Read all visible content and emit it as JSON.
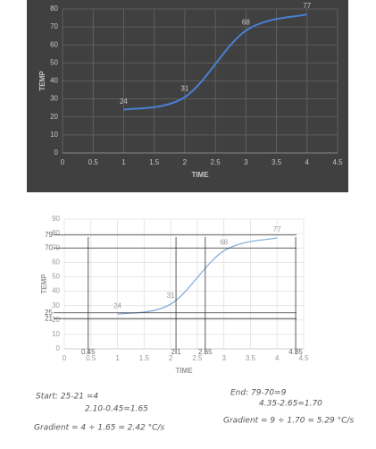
{
  "chart_data": [
    {
      "type": "line",
      "x_label": "TIME",
      "y_label": "TEMP",
      "x": [
        1,
        2,
        3,
        4
      ],
      "values": [
        24,
        31,
        68,
        77
      ],
      "color": "#4a7fd4",
      "background": "#404040",
      "xlim": [
        0,
        4.5
      ],
      "ylim": [
        0,
        80
      ],
      "xticks": [
        0,
        0.5,
        1,
        1.5,
        2,
        2.5,
        3,
        3.5,
        4,
        4.5
      ],
      "yticks": [
        0,
        10,
        20,
        30,
        40,
        50,
        60,
        70,
        80
      ],
      "grid": true
    },
    {
      "type": "line",
      "x_label": "TIME",
      "y_label": "TEMP",
      "x": [
        1,
        2,
        3,
        4
      ],
      "values": [
        24,
        31,
        68,
        77
      ],
      "color": "#7fa8d8",
      "background": "#ffffff",
      "xlim": [
        0,
        4.5
      ],
      "ylim": [
        0,
        90
      ],
      "xticks": [
        0,
        0.5,
        1,
        1.5,
        2,
        2.5,
        3,
        3.5,
        4,
        4.5
      ],
      "yticks": [
        0,
        10,
        20,
        30,
        40,
        50,
        60,
        70,
        80,
        90
      ],
      "grid": true,
      "guides_x": [
        0.45,
        2.1,
        2.65,
        4.35
      ],
      "guides_y": [
        21,
        25,
        70,
        79
      ],
      "notes": [
        "Start: 25-21 =4",
        "2.10-0.45=1.65",
        "Gradient = 4 ÷ 1.65 = 2.42 °C/s",
        "End: 79-70=9",
        "4.35-2.65=1.70",
        "Gradient = 9 ÷ 1.70 = 5.29 °C/s"
      ]
    }
  ]
}
